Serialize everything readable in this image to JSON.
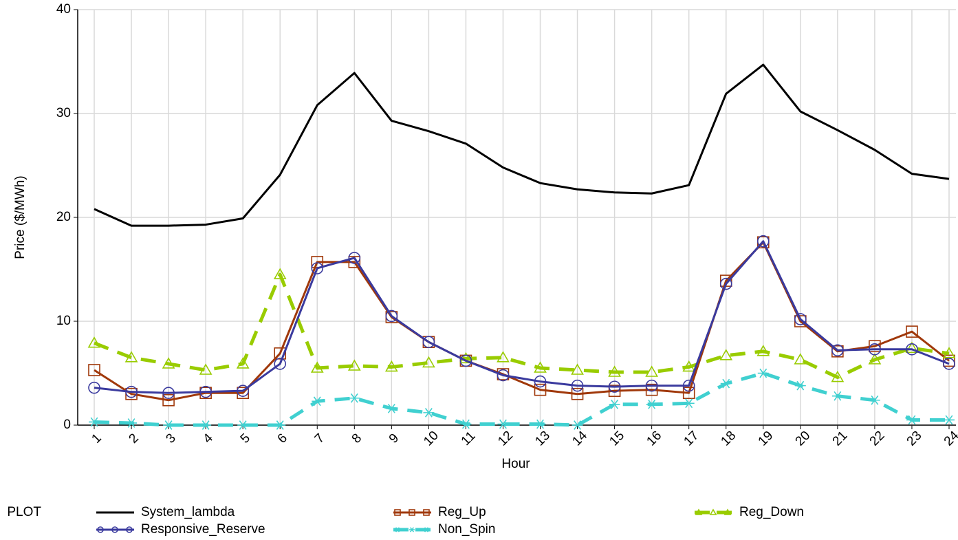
{
  "chart_data": {
    "type": "line",
    "x_label": "Hour",
    "y_label": "Price ($/MWh)",
    "legend_title": "PLOT",
    "categories": [
      "1",
      "2",
      "3",
      "4",
      "5",
      "6",
      "7",
      "8",
      "9",
      "10",
      "11",
      "12",
      "13",
      "14",
      "15",
      "16",
      "17",
      "18",
      "19",
      "20",
      "21",
      "22",
      "23",
      "24"
    ],
    "ylim": [
      0,
      40
    ],
    "yticks": [
      0,
      10,
      20,
      30,
      40
    ],
    "grid": true,
    "series": [
      {
        "name": "System_lambda",
        "color": "#000000",
        "marker": "none",
        "dashed": false,
        "values": [
          20.8,
          19.2,
          19.2,
          19.3,
          19.9,
          24.1,
          30.8,
          33.9,
          29.3,
          28.3,
          27.1,
          24.8,
          23.3,
          22.7,
          22.4,
          22.3,
          23.1,
          31.9,
          34.7,
          30.2,
          28.4,
          26.5,
          24.2,
          23.7
        ]
      },
      {
        "name": "Reg_Up",
        "color": "#a0380a",
        "marker": "square",
        "dashed": false,
        "values": [
          5.3,
          3.0,
          2.4,
          3.1,
          3.1,
          6.9,
          15.7,
          15.7,
          10.4,
          8.0,
          6.2,
          4.9,
          3.4,
          3.0,
          3.3,
          3.4,
          3.1,
          13.9,
          17.6,
          10.0,
          7.1,
          7.6,
          9.0,
          6.2
        ]
      },
      {
        "name": "Reg_Down",
        "color": "#99cc00",
        "marker": "triangle",
        "dashed": true,
        "values": [
          7.9,
          6.5,
          5.9,
          5.3,
          5.9,
          14.5,
          5.5,
          5.7,
          5.6,
          6.0,
          6.4,
          6.5,
          5.5,
          5.3,
          5.1,
          5.1,
          5.6,
          6.7,
          7.1,
          6.3,
          4.6,
          6.3,
          7.4,
          6.9
        ]
      },
      {
        "name": "Responsive_Reserve",
        "color": "#3a3a9e",
        "marker": "circle",
        "dashed": false,
        "values": [
          3.6,
          3.2,
          3.1,
          3.2,
          3.3,
          5.9,
          15.1,
          16.1,
          10.5,
          8.0,
          6.2,
          4.8,
          4.2,
          3.8,
          3.7,
          3.8,
          3.8,
          13.6,
          17.7,
          10.2,
          7.2,
          7.3,
          7.3,
          5.9
        ]
      },
      {
        "name": "Non_Spin",
        "color": "#40d0d0",
        "marker": "asterisk",
        "dashed": true,
        "values": [
          0.3,
          0.2,
          0,
          0,
          0,
          0,
          2.3,
          2.6,
          1.6,
          1.2,
          0.1,
          0.1,
          0.1,
          0.0,
          2.0,
          2.0,
          2.1,
          4.0,
          5.0,
          3.8,
          2.8,
          2.4,
          0.5,
          0.5
        ]
      }
    ]
  }
}
